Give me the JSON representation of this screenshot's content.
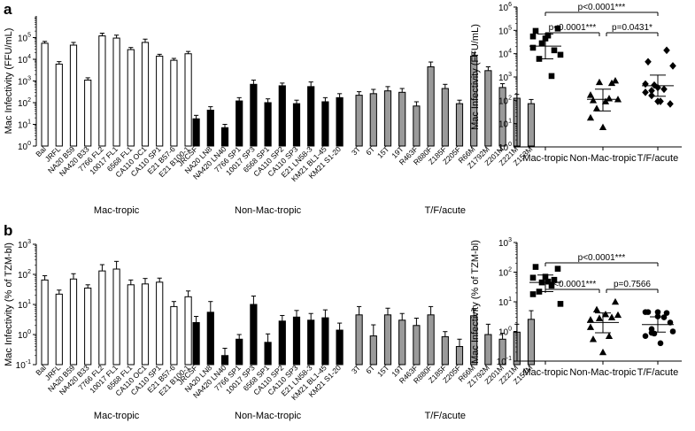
{
  "panel_labels": [
    "a",
    "b"
  ],
  "chart_data": [
    {
      "type": "bar",
      "panel": "a",
      "ylabel": "Mac Infectivity (FFU/mL)",
      "yscale": "log",
      "ylim": [
        1,
        1000000
      ],
      "yticks": [
        {
          "v": 1,
          "e": "0"
        },
        {
          "v": 10,
          "e": "1"
        },
        {
          "v": 100,
          "e": "2"
        },
        {
          "v": 1000,
          "e": "3"
        },
        {
          "v": 10000,
          "e": "4"
        },
        {
          "v": 100000,
          "e": "5"
        }
      ],
      "groups": [
        {
          "name": "Mac-tropic",
          "color": "#ffffff",
          "categories": [
            "Bal",
            "JRFL",
            "NA20 B59",
            "NA420 B33",
            "7766 FL2",
            "10017 FL1",
            "6568 FL1",
            "CA110 OC1",
            "CA110 SP1",
            "E21 B57-6",
            "E21 B100-1"
          ],
          "values": [
            55000,
            6000,
            45000,
            1100,
            120000,
            95000,
            28000,
            60000,
            14000,
            9000,
            18000
          ],
          "errors": [
            12000,
            1800,
            15000,
            300,
            40000,
            35000,
            7000,
            25000,
            3000,
            2000,
            5000
          ]
        },
        {
          "name": "Non-Mac-tropic",
          "color": "#000000",
          "categories": [
            "JRCSF",
            "NA20 LN8",
            "NA420 LN40",
            "7766 SP1",
            "10017 SP3",
            "6568 SP1",
            "CA110 SP2",
            "CA110 SP3",
            "E21 LN58-3",
            "KM21 BL1-45",
            "KM21 S1-20"
          ],
          "values": [
            18,
            45,
            7,
            120,
            700,
            100,
            600,
            90,
            550,
            110,
            170
          ],
          "errors": [
            8,
            20,
            3,
            50,
            400,
            50,
            200,
            40,
            350,
            60,
            90
          ]
        },
        {
          "name": "T/F/acute",
          "color": "#9a9a9a",
          "categories": [
            "3T",
            "6T",
            "15T",
            "19T",
            "R463F",
            "R880F",
            "Z185F",
            "Z205F",
            "R66M",
            "Z1792M",
            "Z201M",
            "Z221M",
            "Z153M"
          ],
          "values": [
            220,
            260,
            350,
            300,
            70,
            4500,
            450,
            90,
            14000,
            3000,
            500,
            160,
            90
          ],
          "errors": [
            100,
            150,
            200,
            150,
            40,
            3000,
            250,
            40,
            6000,
            1500,
            250,
            80,
            50
          ]
        }
      ]
    },
    {
      "type": "scatter",
      "panel": "a",
      "ylabel": "Mac Infectivity (FFU/mL)",
      "yscale": "log",
      "ylim": [
        1,
        1000000
      ],
      "yticks": [
        {
          "v": 1,
          "e": "0"
        },
        {
          "v": 10,
          "e": "1"
        },
        {
          "v": 100,
          "e": "2"
        },
        {
          "v": 1000,
          "e": "3"
        },
        {
          "v": 10000,
          "e": "4"
        },
        {
          "v": 100000,
          "e": "5"
        },
        {
          "v": 1000000,
          "e": "6"
        }
      ],
      "categories": [
        "Mac-tropic",
        "Non-Mac-tropic",
        "T/F/acute"
      ],
      "markers": [
        "square",
        "triangle",
        "diamond"
      ],
      "series": [
        {
          "name": "Mac-tropic",
          "values": [
            55000,
            6000,
            45000,
            1100,
            120000,
            95000,
            28000,
            60000,
            14000,
            9000,
            18000
          ],
          "mean": 21000,
          "sd_low": 6000,
          "sd_high": 70000
        },
        {
          "name": "Non-Mac-tropic",
          "values": [
            18,
            45,
            7,
            120,
            700,
            100,
            600,
            90,
            550,
            110,
            170
          ],
          "mean": 110,
          "sd_low": 35,
          "sd_high": 300
        },
        {
          "name": "T/F/acute",
          "values": [
            220,
            260,
            350,
            300,
            70,
            4500,
            450,
            90,
            14000,
            3000,
            500,
            160,
            90
          ],
          "mean": 420,
          "sd_low": 150,
          "sd_high": 1200
        }
      ],
      "comparisons": [
        {
          "from": 0,
          "to": 1,
          "label": "p<0.0001***",
          "level": 1
        },
        {
          "from": 1,
          "to": 2,
          "label": "p=0.0431*",
          "level": 1
        },
        {
          "from": 0,
          "to": 2,
          "label": "p<0.0001***",
          "level": 2
        }
      ]
    },
    {
      "type": "bar",
      "panel": "b",
      "ylabel": "Mac Infectivity (% of TZM-bl)",
      "yscale": "log",
      "ylim": [
        0.1,
        1000
      ],
      "yticks": [
        {
          "v": 0.1,
          "e": "-1"
        },
        {
          "v": 1,
          "e": "0"
        },
        {
          "v": 10,
          "e": "1"
        },
        {
          "v": 100,
          "e": "2"
        },
        {
          "v": 1000,
          "e": "3"
        }
      ],
      "groups": [
        {
          "name": "Mac-tropic",
          "color": "#ffffff",
          "categories": [
            "Bal",
            "JRFL",
            "NA20 B59",
            "NA420 B33",
            "7766 FL2",
            "10017 FL1",
            "6568 FL1",
            "CA110 OC1",
            "CA110 SP1",
            "E21 B57-6",
            "E21 B100-1"
          ],
          "values": [
            65,
            22,
            70,
            35,
            130,
            150,
            45,
            48,
            55,
            8.5,
            18
          ],
          "errors": [
            25,
            8,
            35,
            10,
            80,
            120,
            20,
            25,
            20,
            4,
            10
          ]
        },
        {
          "name": "Non-Mac-tropic",
          "color": "#000000",
          "categories": [
            "JRCSF",
            "NA20 LN8",
            "NA420 LN40",
            "7766 SP1",
            "10017 SP3",
            "6568 SP1",
            "CA110 SP2",
            "CA110 SP3",
            "E21 LN58-3",
            "KM21 BL1-45",
            "KM21 S1-20"
          ],
          "values": [
            2.5,
            5.5,
            0.2,
            0.7,
            10,
            0.55,
            2.8,
            3.8,
            3,
            3.6,
            1.4
          ],
          "errors": [
            1.5,
            7,
            0.15,
            0.3,
            9,
            0.5,
            1.5,
            2.5,
            2,
            3,
            1
          ]
        },
        {
          "name": "T/F/acute",
          "color": "#9a9a9a",
          "categories": [
            "3T",
            "6T",
            "15T",
            "19T",
            "R463F",
            "R880F",
            "Z185F",
            "Z205F",
            "R66M",
            "Z1792M",
            "Z201M",
            "Z221M",
            "Z153M"
          ],
          "values": [
            4.5,
            0.9,
            4.5,
            3,
            2,
            4.5,
            0.85,
            0.4,
            4.2,
            1,
            0.7,
            1.2,
            3.2
          ],
          "errors": [
            4,
            1.2,
            3,
            2,
            1.5,
            4,
            0.4,
            0.3,
            2.5,
            1.2,
            0.4,
            1,
            3
          ]
        }
      ]
    },
    {
      "type": "scatter",
      "panel": "b",
      "ylabel": "Mac Infectivity (% of TZM-bl)",
      "yscale": "log",
      "ylim": [
        0.1,
        1000
      ],
      "yticks": [
        {
          "v": 0.1,
          "e": "-1"
        },
        {
          "v": 1,
          "e": "0"
        },
        {
          "v": 10,
          "e": "1"
        },
        {
          "v": 100,
          "e": "2"
        },
        {
          "v": 1000,
          "e": "3"
        }
      ],
      "categories": [
        "Mac-tropic",
        "Non-Mac-tropic",
        "T/F/acute"
      ],
      "markers": [
        "square",
        "triangle",
        "circle"
      ],
      "series": [
        {
          "name": "Mac-tropic",
          "values": [
            65,
            22,
            70,
            35,
            130,
            150,
            45,
            48,
            55,
            8.5,
            18
          ],
          "mean": 45,
          "sd_low": 22,
          "sd_high": 80
        },
        {
          "name": "Non-Mac-tropic",
          "values": [
            2.5,
            5.5,
            0.2,
            0.7,
            10,
            0.55,
            2.8,
            3.8,
            3,
            3.6,
            1.4
          ],
          "mean": 2,
          "sd_low": 0.9,
          "sd_high": 4.2
        },
        {
          "name": "T/F/acute",
          "values": [
            4.5,
            0.9,
            4.5,
            3,
            2,
            4.5,
            0.85,
            0.4,
            4.2,
            1,
            0.7,
            1.2,
            3.2
          ],
          "mean": 1.7,
          "sd_low": 0.95,
          "sd_high": 3.1
        }
      ],
      "comparisons": [
        {
          "from": 0,
          "to": 1,
          "label": "p<0.0001***",
          "level": 1
        },
        {
          "from": 1,
          "to": 2,
          "label": "p=0.7566",
          "level": 1
        },
        {
          "from": 0,
          "to": 2,
          "label": "p<0.0001***",
          "level": 2
        }
      ]
    }
  ]
}
